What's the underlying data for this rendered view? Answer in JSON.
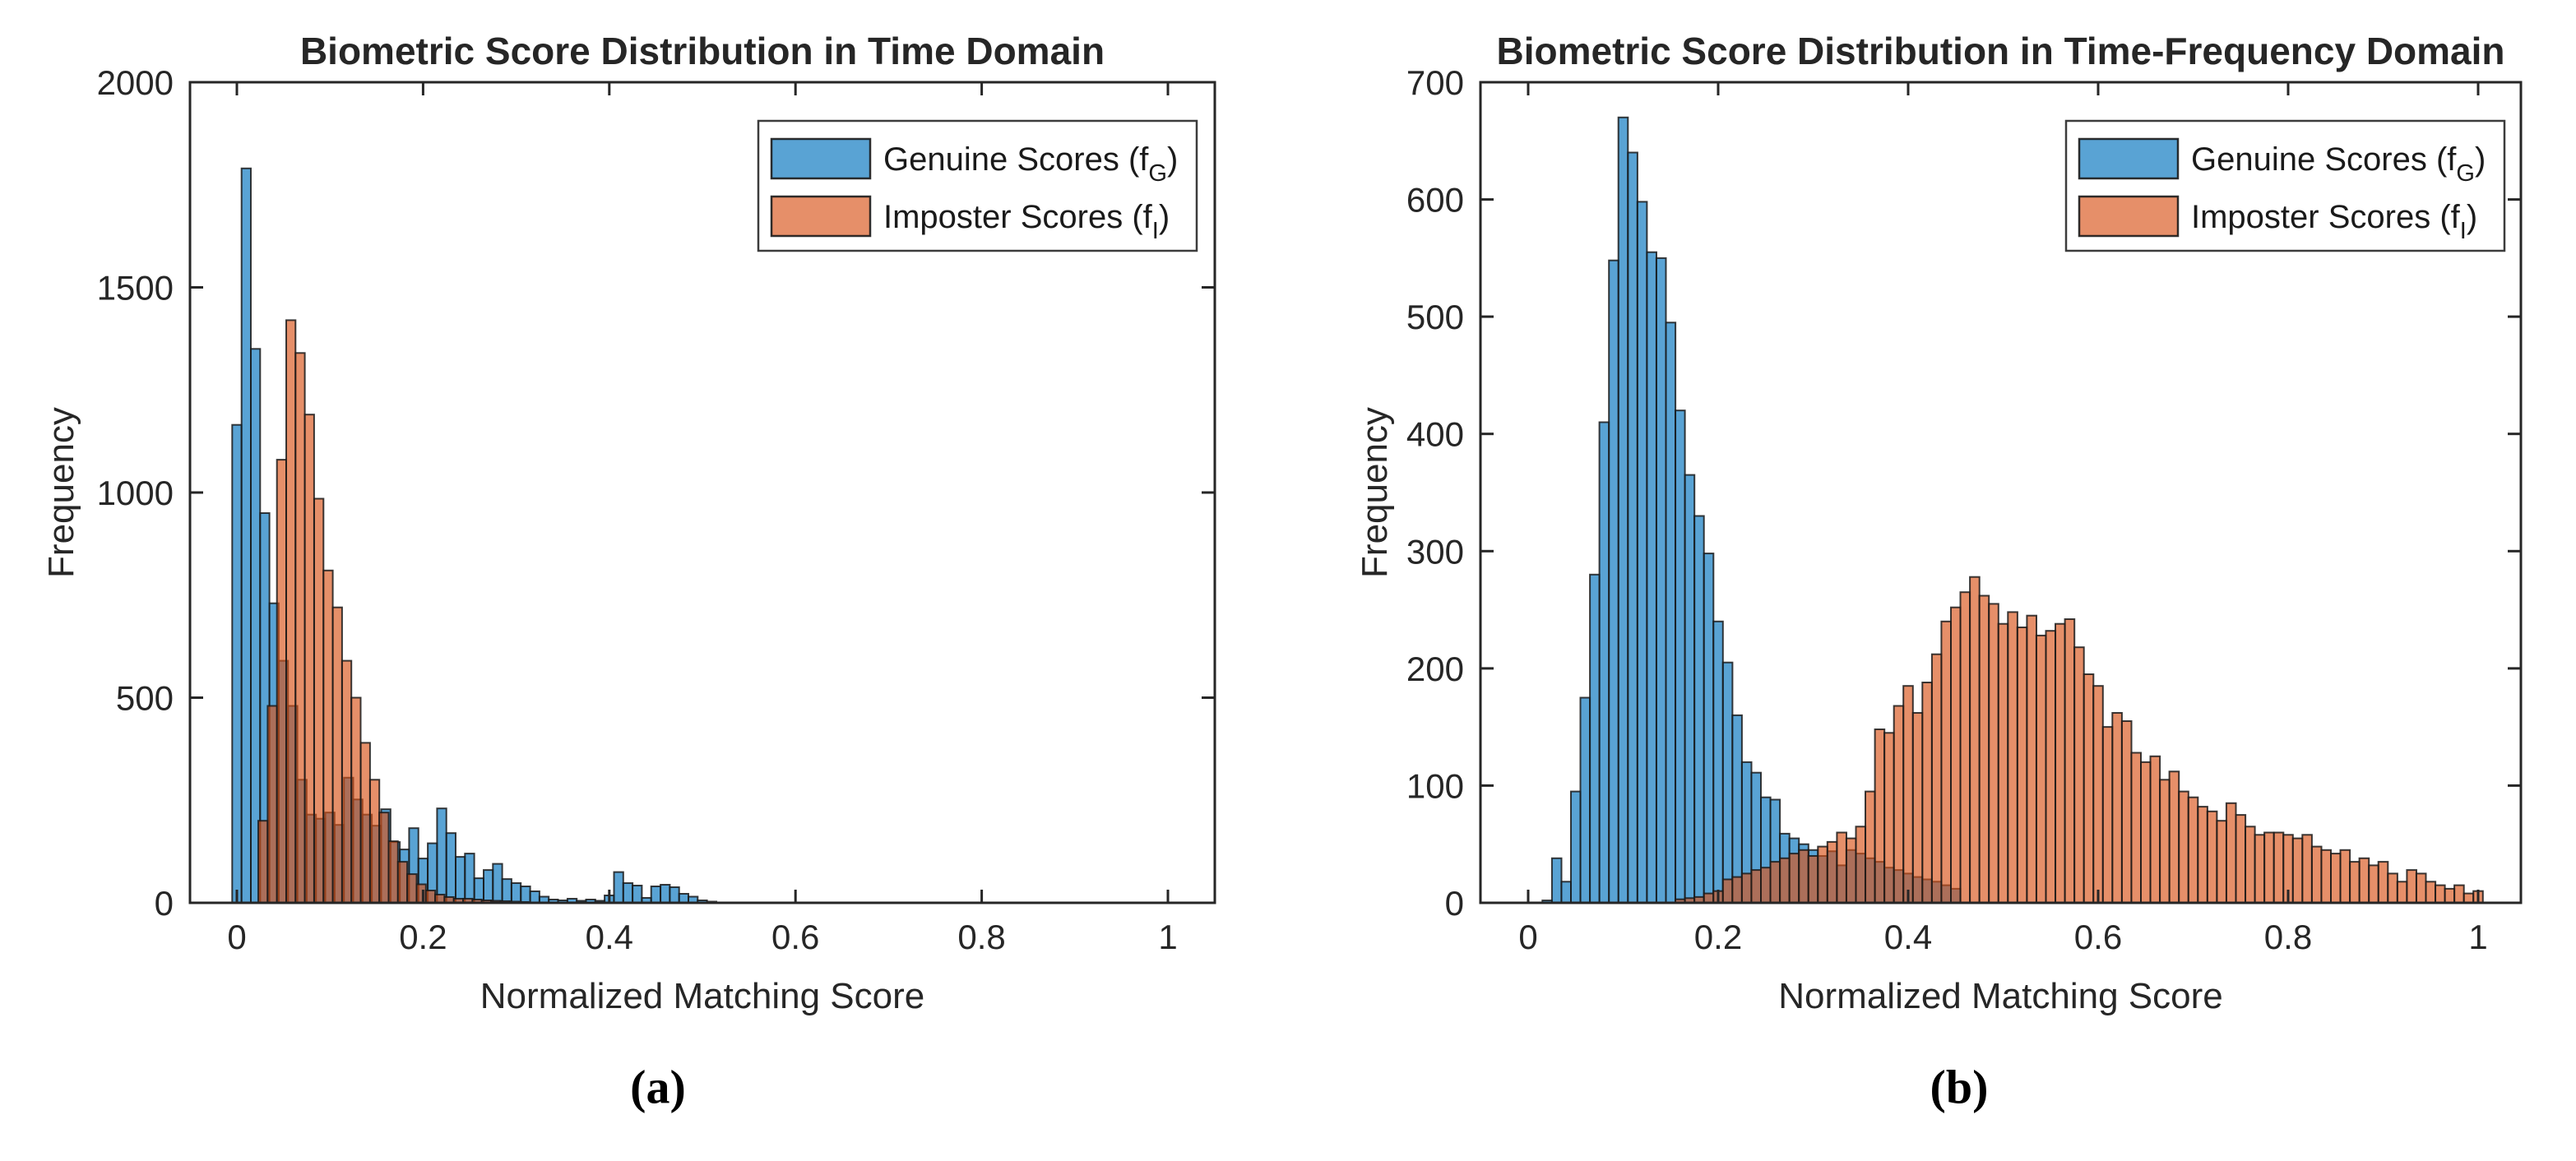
{
  "figure": {
    "background": "#ffffff",
    "description": "Two overlaid histograms comparing genuine and imposter biometric matching scores"
  },
  "colors": {
    "genuine_base": "#0072BD",
    "imposter_base": "#D95319",
    "genuine_rendered": "#5CA4D2",
    "imposter_rendered": "#E68F69",
    "overlap_rendered": "#8A5A45",
    "bar_edge": "#1a1a1a",
    "axis": "#262626",
    "legend_border": "#3c3c3c",
    "text": "#262626"
  },
  "legend": {
    "items": [
      {
        "key": "genuine",
        "label": "Genuine Scores (f_G)",
        "label_pre": "Genuine Scores (f",
        "label_sub": "G",
        "label_post": ")"
      },
      {
        "key": "imposter",
        "label": "Imposter Scores (f_I)",
        "label_pre": "Imposter Scores (f",
        "label_sub": "I",
        "label_post": ")"
      }
    ]
  },
  "chart_data": [
    {
      "type": "bar",
      "subtype": "overlaid-histogram",
      "title": "Biometric Score Distribution in Time Domain",
      "xlabel": "Normalized Matching Score",
      "ylabel": "Frequency",
      "caption": "(a)",
      "xlim": [
        -0.05,
        1.05
      ],
      "ylim": [
        0,
        2000
      ],
      "grid": false,
      "legend_position": "top-right",
      "xticks": {
        "values": [
          0,
          0.2,
          0.4,
          0.6,
          0.8,
          1
        ],
        "labels": [
          "0",
          "0.2",
          "0.4",
          "0.6",
          "0.8",
          "1"
        ]
      },
      "yticks": {
        "values": [
          0,
          500,
          1000,
          1500,
          2000
        ],
        "labels": [
          "0",
          "500",
          "1000",
          "1500",
          "2000"
        ]
      },
      "series": [
        {
          "name": "Genuine Scores (f_G)",
          "color": "#0072BD",
          "opacity": 0.65,
          "bin_start": -0.005,
          "bin_width": 0.01,
          "values": [
            1165,
            1790,
            1350,
            950,
            730,
            590,
            480,
            300,
            215,
            205,
            220,
            190,
            305,
            252,
            215,
            188,
            228,
            148,
            130,
            182,
            108,
            145,
            230,
            170,
            112,
            120,
            60,
            80,
            95,
            58,
            48,
            40,
            28,
            15,
            8,
            6,
            10,
            5,
            8,
            5,
            18,
            75,
            48,
            42,
            12,
            40,
            44,
            38,
            22,
            15,
            6,
            3
          ]
        },
        {
          "name": "Imposter Scores (f_I)",
          "color": "#D95319",
          "opacity": 0.65,
          "bin_start": 0.023,
          "bin_width": 0.01,
          "values": [
            200,
            480,
            1080,
            1420,
            1340,
            1190,
            985,
            810,
            720,
            590,
            500,
            390,
            300,
            220,
            150,
            100,
            70,
            45,
            30,
            20,
            14,
            10,
            10,
            8,
            6,
            5,
            4,
            3,
            2
          ]
        }
      ]
    },
    {
      "type": "bar",
      "subtype": "overlaid-histogram",
      "title": "Biometric Score Distribution in Time-Frequency Domain",
      "xlabel": "Normalized Matching Score",
      "ylabel": "Frequency",
      "caption": "(b)",
      "xlim": [
        -0.05,
        1.05
      ],
      "ylim": [
        0,
        700
      ],
      "grid": false,
      "legend_position": "top-right",
      "xticks": {
        "values": [
          0,
          0.2,
          0.4,
          0.6,
          0.8,
          1
        ],
        "labels": [
          "0",
          "0.2",
          "0.4",
          "0.6",
          "0.8",
          "1"
        ]
      },
      "yticks": {
        "values": [
          0,
          100,
          200,
          300,
          400,
          500,
          600,
          700
        ],
        "labels": [
          "0",
          "100",
          "200",
          "300",
          "400",
          "500",
          "600",
          "700"
        ]
      },
      "series": [
        {
          "name": "Genuine Scores (f_G)",
          "color": "#0072BD",
          "opacity": 0.65,
          "bin_start": 0.015,
          "bin_width": 0.01,
          "values": [
            2,
            38,
            18,
            95,
            175,
            280,
            410,
            548,
            670,
            640,
            598,
            555,
            550,
            495,
            420,
            365,
            330,
            298,
            240,
            205,
            160,
            120,
            111,
            90,
            88,
            59,
            55,
            50,
            45,
            40,
            44,
            32,
            45,
            42,
            38,
            35,
            30,
            28,
            25,
            22,
            20,
            18,
            15,
            12
          ]
        },
        {
          "name": "Imposter Scores (f_I)",
          "color": "#D95319",
          "opacity": 0.65,
          "bin_start": 0.155,
          "bin_width": 0.01,
          "values": [
            3,
            4,
            5,
            8,
            10,
            20,
            22,
            25,
            28,
            30,
            35,
            38,
            42,
            45,
            40,
            48,
            52,
            60,
            55,
            65,
            95,
            148,
            145,
            168,
            185,
            162,
            188,
            212,
            240,
            252,
            265,
            278,
            262,
            255,
            238,
            248,
            235,
            245,
            228,
            232,
            238,
            242,
            218,
            195,
            185,
            150,
            162,
            155,
            128,
            120,
            125,
            105,
            112,
            95,
            90,
            82,
            78,
            70,
            85,
            75,
            65,
            58,
            60,
            60,
            58,
            55,
            58,
            48,
            45,
            42,
            45,
            35,
            38,
            32,
            35,
            25,
            18,
            28,
            25,
            18,
            15,
            12,
            15,
            8,
            10
          ]
        }
      ]
    }
  ]
}
